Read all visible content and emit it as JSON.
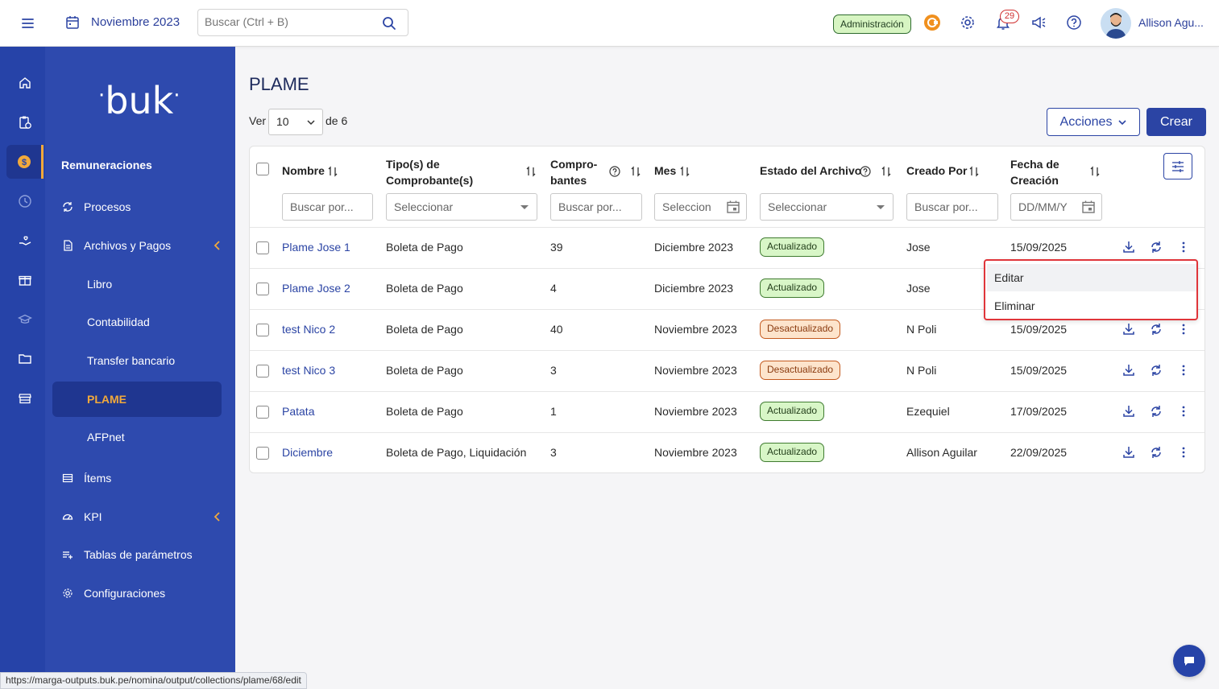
{
  "header": {
    "month": "Noviembre 2023",
    "search_placeholder": "Buscar (Ctrl + B)",
    "admin_label": "Administración",
    "notifications_count": "29",
    "user_name": "Allison Agu..."
  },
  "sidebar": {
    "logo": "buk",
    "section": "Remuneraciones",
    "items": [
      {
        "label": "Procesos"
      },
      {
        "label": "Archivos y Pagos"
      },
      {
        "label": "Libro"
      },
      {
        "label": "Contabilidad"
      },
      {
        "label": "Transfer bancario"
      },
      {
        "label": "PLAME"
      },
      {
        "label": "AFPnet"
      },
      {
        "label": "Ítems"
      },
      {
        "label": "KPI"
      },
      {
        "label": "Tablas de parámetros"
      },
      {
        "label": "Configuraciones"
      }
    ]
  },
  "page": {
    "title": "PLAME",
    "ver_label": "Ver",
    "page_size": "10",
    "of_label": "de 6",
    "actions_label": "Acciones",
    "create_label": "Crear"
  },
  "table": {
    "headers": {
      "name": "Nombre",
      "type_l1": "Tipo(s) de",
      "type_l2": "Comprobante(s)",
      "comp_l1": "Compro-",
      "comp_l2": "bantes",
      "month": "Mes",
      "state": "Estado del Archivo",
      "created_by": "Creado Por",
      "date_l1": "Fecha de",
      "date_l2": "Creación"
    },
    "filters": {
      "name": "Buscar por...",
      "type": "Seleccionar",
      "comp": "Buscar por...",
      "month": "Seleccion",
      "state": "Seleccionar",
      "created_by": "Buscar por...",
      "date": "DD/MM/Y"
    },
    "rows": [
      {
        "name": "Plame Jose 1",
        "type": "Boleta de Pago",
        "count": "39",
        "month": "Diciembre 2023",
        "state": "Actualizado",
        "created_by": "Jose",
        "date": "15/09/2025"
      },
      {
        "name": "Plame Jose 2",
        "type": "Boleta de Pago",
        "count": "4",
        "month": "Diciembre 2023",
        "state": "Actualizado",
        "created_by": "Jose",
        "date": ""
      },
      {
        "name": "test Nico 2",
        "type": "Boleta de Pago",
        "count": "40",
        "month": "Noviembre 2023",
        "state": "Desactualizado",
        "created_by": "N Poli",
        "date": "15/09/2025"
      },
      {
        "name": "test Nico 3",
        "type": "Boleta de Pago",
        "count": "3",
        "month": "Noviembre 2023",
        "state": "Desactualizado",
        "created_by": "N Poli",
        "date": "15/09/2025"
      },
      {
        "name": "Patata",
        "type": "Boleta de Pago",
        "count": "1",
        "month": "Noviembre 2023",
        "state": "Actualizado",
        "created_by": "Ezequiel",
        "date": "17/09/2025"
      },
      {
        "name": "Diciembre",
        "type": "Boleta de Pago, Liquidación",
        "count": "3",
        "month": "Noviembre 2023",
        "state": "Actualizado",
        "created_by": "Allison Aguilar",
        "date": "22/09/2025"
      }
    ]
  },
  "context_menu": {
    "edit": "Editar",
    "delete": "Eliminar"
  },
  "status_url": "https://marga-outputs.buk.pe/nomina/output/collections/plame/68/edit",
  "colors": {
    "primary": "#2b44a4",
    "sidebar": "#2e4aae",
    "accent": "#f2a93b",
    "ok_bg": "#d8f6c7",
    "bad_bg": "#fde4cc",
    "menu_border": "#e0353a"
  }
}
